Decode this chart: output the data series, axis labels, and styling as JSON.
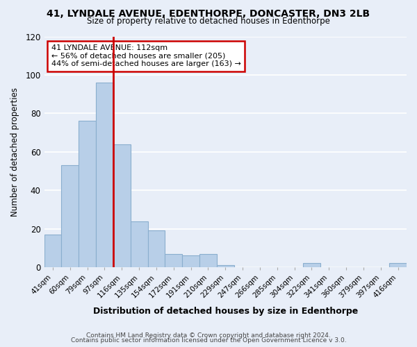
{
  "title1": "41, LYNDALE AVENUE, EDENTHORPE, DONCASTER, DN3 2LB",
  "title2": "Size of property relative to detached houses in Edenthorpe",
  "xlabel": "Distribution of detached houses by size in Edenthorpe",
  "ylabel": "Number of detached properties",
  "footer1": "Contains HM Land Registry data © Crown copyright and database right 2024.",
  "footer2": "Contains public sector information licensed under the Open Government Licence v 3.0.",
  "categories": [
    "41sqm",
    "60sqm",
    "79sqm",
    "97sqm",
    "116sqm",
    "135sqm",
    "154sqm",
    "172sqm",
    "191sqm",
    "210sqm",
    "229sqm",
    "247sqm",
    "266sqm",
    "285sqm",
    "304sqm",
    "322sqm",
    "341sqm",
    "360sqm",
    "379sqm",
    "397sqm",
    "416sqm"
  ],
  "values": [
    17,
    53,
    76,
    96,
    64,
    24,
    19,
    7,
    6,
    7,
    1,
    0,
    0,
    0,
    0,
    2,
    0,
    0,
    0,
    0,
    2
  ],
  "bar_color": "#b8cfe8",
  "bar_edge_color": "#8aaece",
  "highlight_line_color": "#cc0000",
  "property_line_index": 3,
  "annotation_title": "41 LYNDALE AVENUE: 112sqm",
  "annotation_line1": "← 56% of detached houses are smaller (205)",
  "annotation_line2": "44% of semi-detached houses are larger (163) →",
  "ylim": [
    0,
    120
  ],
  "yticks": [
    0,
    20,
    40,
    60,
    80,
    100,
    120
  ],
  "background_color": "#e8eef8",
  "plot_background": "#e8eef8",
  "grid_color": "#ffffff"
}
